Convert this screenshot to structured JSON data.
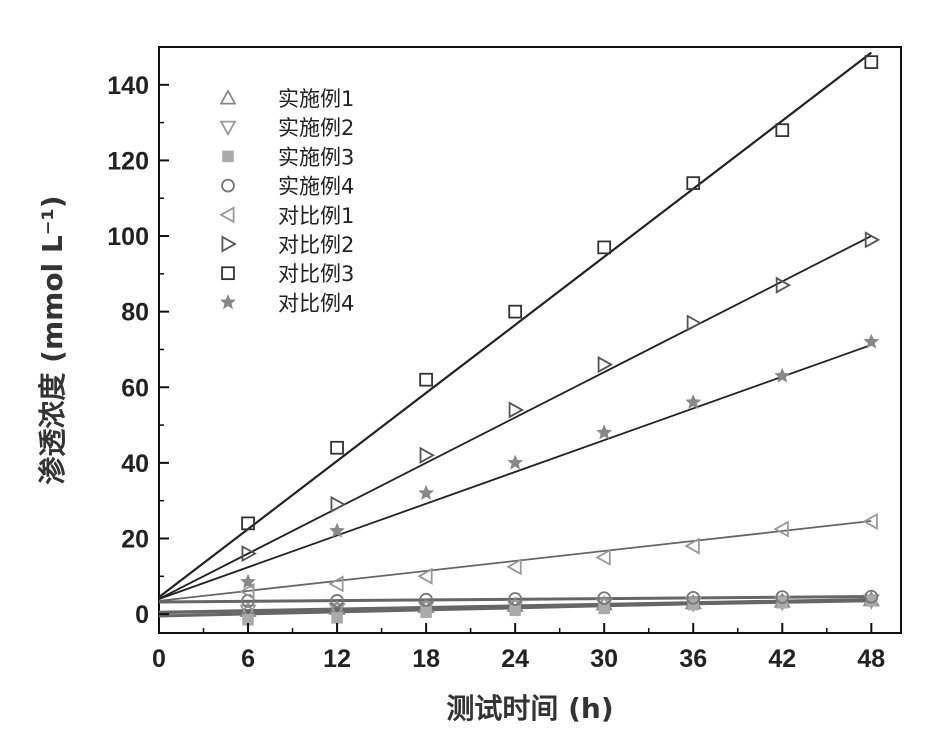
{
  "chart_data": {
    "type": "scatter",
    "xlabel": "测试时间 (h)",
    "ylabel": "渗透浓度 (mmol L⁻¹)",
    "xlim": [
      0,
      50
    ],
    "ylim": [
      -5,
      150
    ],
    "xticks": [
      0,
      6,
      12,
      18,
      24,
      30,
      36,
      42,
      48
    ],
    "yticks": [
      0,
      20,
      40,
      60,
      80,
      100,
      120,
      140
    ],
    "grid": false,
    "legend_position": "top-left",
    "x": [
      6,
      12,
      18,
      24,
      30,
      36,
      42,
      48
    ],
    "series": [
      {
        "name": "实施例1",
        "marker": "triangle-up",
        "color": "#888888",
        "values": [
          1.0,
          1.5,
          2.0,
          2.3,
          2.7,
          3.0,
          3.4,
          3.8
        ],
        "fit": [
          0.5,
          0.07
        ]
      },
      {
        "name": "实施例2",
        "marker": "triangle-down",
        "color": "#999999",
        "values": [
          0.8,
          1.2,
          1.7,
          2.0,
          2.4,
          2.8,
          3.1,
          3.5
        ],
        "fit": [
          0.4,
          0.065
        ]
      },
      {
        "name": "实施例3",
        "marker": "square-filled",
        "color": "#aaaaaa",
        "values": [
          -1.5,
          -1.0,
          0.5,
          1.0,
          1.5,
          2.5,
          3.0,
          3.5
        ],
        "fit": [
          -0.5,
          0.09
        ]
      },
      {
        "name": "实施例4",
        "marker": "circle",
        "color": "#777777",
        "values": [
          3.5,
          3.5,
          3.8,
          4.0,
          4.2,
          4.3,
          4.5,
          4.6
        ],
        "fit": [
          3.2,
          0.03
        ]
      },
      {
        "name": "对比例1",
        "marker": "triangle-left",
        "color": "#999999",
        "values": [
          6.0,
          8.0,
          10.0,
          12.5,
          15.0,
          18.0,
          22.5,
          24.5
        ],
        "fit": [
          3.5,
          0.44
        ]
      },
      {
        "name": "对比例2",
        "marker": "triangle-right",
        "color": "#555555",
        "values": [
          16,
          29,
          42,
          54,
          66,
          77,
          87,
          99
        ],
        "fit": [
          4.0,
          2.0
        ]
      },
      {
        "name": "对比例3",
        "marker": "square",
        "color": "#333333",
        "values": [
          24,
          44,
          62,
          80,
          97,
          114,
          128,
          146
        ],
        "fit": [
          4.5,
          3.0
        ]
      },
      {
        "name": "对比例4",
        "marker": "star",
        "color": "#888888",
        "values": [
          8.5,
          22,
          32,
          40,
          48,
          56,
          63,
          72
        ],
        "fit": [
          4.0,
          1.4
        ]
      }
    ]
  }
}
